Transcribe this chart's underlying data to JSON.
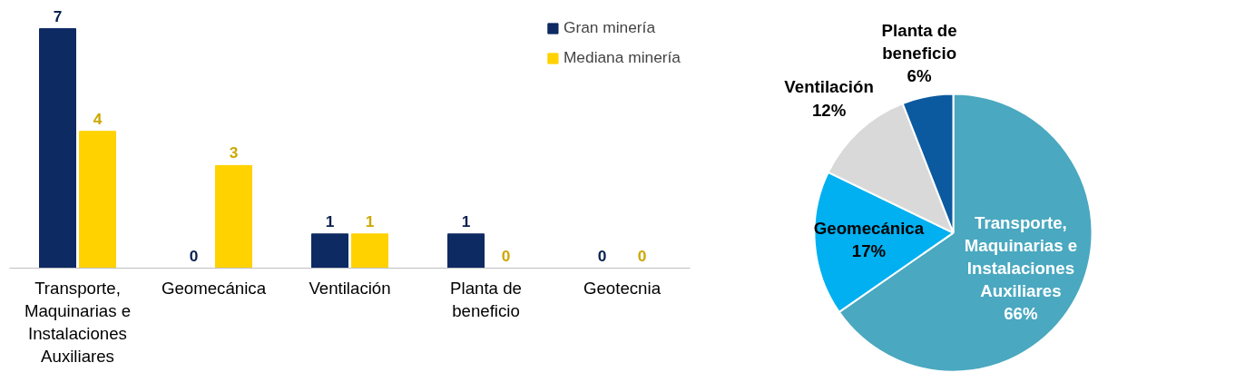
{
  "chart_data": [
    {
      "type": "bar",
      "categories": [
        "Transporte, Maquinarias e Instalaciones Auxiliares",
        "Geomecánica",
        "Ventilación",
        "Planta de beneficio",
        "Geotecnia"
      ],
      "series": [
        {
          "name": "Gran minería",
          "color": "#0d2a63",
          "values": [
            7,
            0,
            1,
            1,
            0
          ]
        },
        {
          "name": "Mediana minería",
          "color": "#ffd200",
          "values": [
            4,
            3,
            1,
            0,
            0
          ]
        }
      ],
      "data_labels": true,
      "legend": "top right",
      "grid": false
    },
    {
      "type": "pie",
      "categories": [
        "Transporte, Maquinarias e Instalaciones Auxiliares",
        "Geomecánica",
        "Ventilación",
        "Planta de beneficio"
      ],
      "values": [
        66,
        17,
        12,
        6
      ],
      "value_labels": [
        "66%",
        "17%",
        "12%",
        "6%"
      ],
      "colors": [
        "#4aa8c0",
        "#00b0f0",
        "#d9d9d9",
        "#0b5aa0"
      ]
    }
  ]
}
